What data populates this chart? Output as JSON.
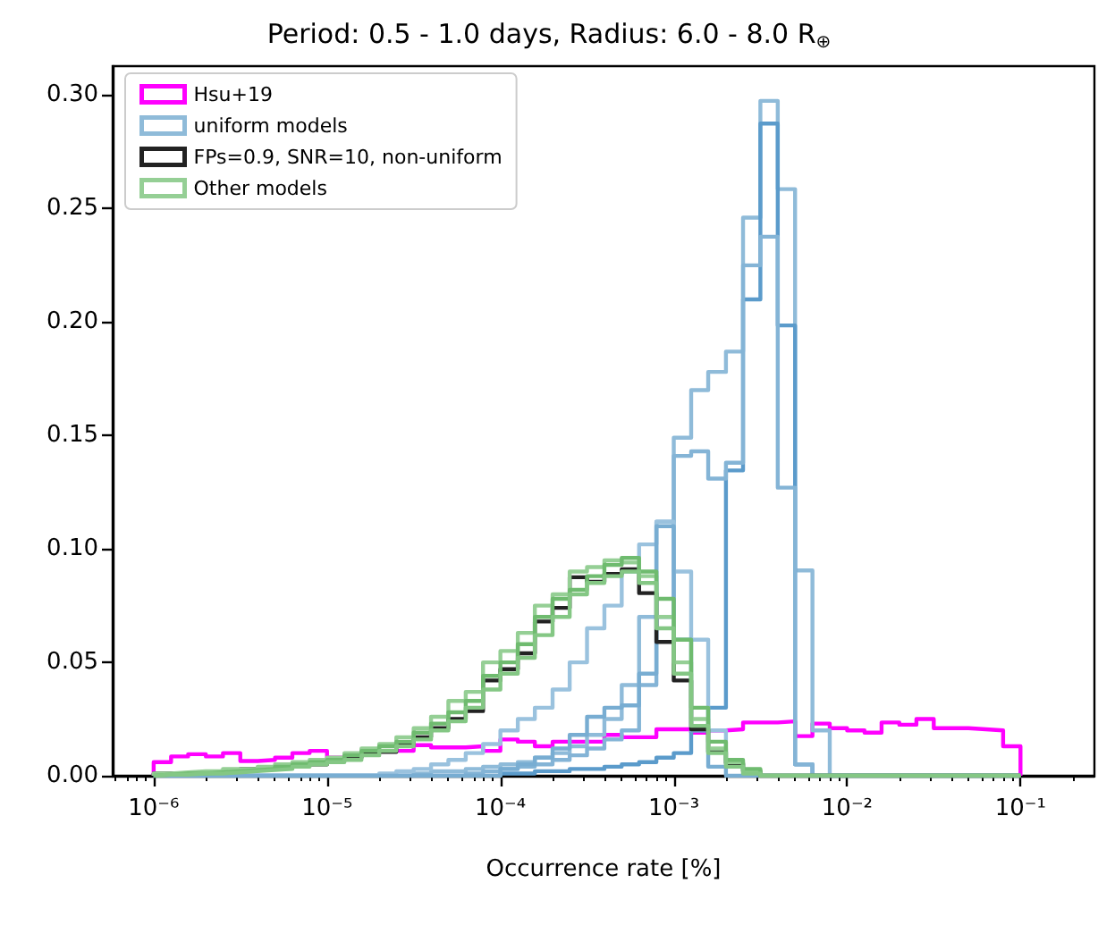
{
  "chart_data": {
    "type": "histogram",
    "title": "Period: 0.5 - 1.0 days, Radius: 6.0 - 8.0 R$_{⊕}$",
    "xlabel": "Occurrence rate [%]",
    "log": "x",
    "grid": false,
    "legend": "top left",
    "line_style": "solid",
    "xlim": [
      5.8e-07,
      0.267
    ],
    "ylim": [
      0,
      0.3128
    ],
    "xticks": [
      {
        "value": 1e-06,
        "label": "10⁻⁶"
      },
      {
        "value": 1e-05,
        "label": "10⁻⁵"
      },
      {
        "value": 0.0001,
        "label": "10⁻⁴"
      },
      {
        "value": 0.001,
        "label": "10⁻³"
      },
      {
        "value": 0.01,
        "label": "10⁻²"
      },
      {
        "value": 0.1,
        "label": "10⁻¹"
      }
    ],
    "yticks": [
      {
        "value": 0,
        "label": "0.00"
      },
      {
        "value": 0.05,
        "label": "0.05"
      },
      {
        "value": 0.1,
        "label": "0.10"
      },
      {
        "value": 0.15,
        "label": "0.15"
      },
      {
        "value": 0.2,
        "label": "0.20"
      },
      {
        "value": 0.25,
        "label": "0.25"
      },
      {
        "value": 0.3,
        "label": "0.30"
      }
    ],
    "bins": [
      1e-06,
      1.26e-06,
      1.58e-06,
      2e-06,
      2.51e-06,
      3.16e-06,
      3.98e-06,
      5.01e-06,
      6.31e-06,
      7.94e-06,
      1e-05,
      1.26e-05,
      1.58e-05,
      2e-05,
      2.51e-05,
      3.16e-05,
      3.98e-05,
      5.01e-05,
      6.31e-05,
      7.94e-05,
      0.0001,
      0.000126,
      0.000158,
      0.0002,
      0.000251,
      0.000316,
      0.000398,
      0.000501,
      0.000631,
      0.000794,
      0.001,
      0.00126,
      0.00158,
      0.002,
      0.00251,
      0.00316,
      0.00398,
      0.00501,
      0.00631,
      0.00794,
      0.01,
      0.0126,
      0.0158,
      0.02,
      0.0251,
      0.0316,
      0.0398,
      0.0501,
      0.0631,
      0.0794,
      0.1
    ],
    "series": [
      {
        "name": "Hsu+19",
        "color": "#ff00ff",
        "values": [
          0.006,
          0.0085,
          0.0095,
          0.0085,
          0.01,
          0.0065,
          0.007,
          0.008,
          0.01,
          0.011,
          0.008,
          0.009,
          0.011,
          0.011,
          0.011,
          0.0135,
          0.0125,
          0.0125,
          0.013,
          0.011,
          0.016,
          0.015,
          0.013,
          0.015,
          0.015,
          0.015,
          0.018,
          0.017,
          0.017,
          0.0205,
          0.0205,
          0.019,
          0.02,
          0.0205,
          0.0235,
          0.0235,
          0.024,
          0.0175,
          0.023,
          0.021,
          0.02,
          0.019,
          0.0235,
          0.0225,
          0.025,
          0.021,
          0.021,
          0.0205,
          0.02,
          0.013
        ]
      },
      {
        "name": "uniform models",
        "color": "#8fbbd9",
        "values": [
          0,
          0,
          0,
          0,
          0,
          0,
          0,
          0,
          0,
          0,
          0,
          0,
          0,
          0,
          0,
          0.001,
          0.002,
          0.002,
          0.003,
          0.004,
          0.005,
          0.006,
          0.008,
          0.01,
          0.013,
          0.018,
          0.025,
          0.04,
          0.07,
          0.112,
          0.149,
          0.17,
          0.178,
          0.187,
          0.246,
          0.2975,
          0.2586,
          0.0905,
          0.02,
          0,
          0,
          0,
          0,
          0,
          0,
          0,
          0,
          0,
          0,
          0
        ]
      },
      {
        "color": "#5b9bcb",
        "values": [
          0,
          0,
          0,
          0,
          0,
          0,
          0,
          0,
          0,
          0,
          0,
          0,
          0,
          0,
          0,
          0,
          0,
          0,
          0,
          0,
          0.001,
          0.001,
          0.002,
          0.002,
          0.003,
          0.003,
          0.004,
          0.005,
          0.006,
          0.008,
          0.01,
          0.02,
          0.03,
          0.1346,
          0.21,
          0.2875,
          0.1985,
          0.005,
          0,
          0,
          0,
          0,
          0,
          0,
          0,
          0,
          0,
          0,
          0,
          0
        ]
      },
      {
        "color": "#84b4d6",
        "values": [
          0,
          0,
          0,
          0,
          0,
          0,
          0,
          0,
          0,
          0,
          0,
          0,
          0,
          0,
          0,
          0,
          0,
          0,
          0.001,
          0.002,
          0.003,
          0.004,
          0.005,
          0.007,
          0.009,
          0.012,
          0.016,
          0.02,
          0.04,
          0.07,
          0.141,
          0.143,
          0.131,
          0.138,
          0.225,
          0.2376,
          0.127,
          0.005,
          0,
          0,
          0,
          0,
          0,
          0,
          0,
          0,
          0,
          0,
          0,
          0
        ]
      },
      {
        "color": "#9ac2de",
        "values": [
          0,
          0,
          0,
          0,
          0,
          0,
          0,
          0,
          0,
          0,
          0,
          0,
          0,
          0.001,
          0.002,
          0.003,
          0.005,
          0.007,
          0.01,
          0.014,
          0.02,
          0.025,
          0.03,
          0.038,
          0.05,
          0.065,
          0.075,
          0.09,
          0.102,
          0.112,
          0.09,
          0.06,
          0.02,
          0.005,
          0,
          0,
          0,
          0,
          0,
          0,
          0,
          0,
          0,
          0,
          0,
          0,
          0,
          0,
          0,
          0
        ]
      },
      {
        "color": "#78add2",
        "values": [
          0,
          0,
          0,
          0,
          0,
          0,
          0,
          0,
          0,
          0,
          0,
          0,
          0,
          0,
          0,
          0,
          0,
          0,
          0,
          0,
          0.003,
          0.005,
          0.008,
          0.012,
          0.018,
          0.026,
          0.03,
          0.031,
          0.045,
          0.11,
          0.06,
          0.02,
          0.004,
          0,
          0,
          0,
          0,
          0,
          0,
          0,
          0,
          0,
          0,
          0,
          0,
          0,
          0,
          0,
          0,
          0
        ]
      },
      {
        "name": "FPs=0.9, SNR=10, non-uniform",
        "color": "#222222",
        "values": [
          0.001,
          0.001,
          0.0015,
          0.002,
          0.002,
          0.003,
          0.003,
          0.004,
          0.005,
          0.005,
          0.007,
          0.008,
          0.0105,
          0.0105,
          0.0135,
          0.017,
          0.021,
          0.025,
          0.0285,
          0.042,
          0.047,
          0.054,
          0.068,
          0.074,
          0.0875,
          0.0855,
          0.089,
          0.091,
          0.0805,
          0.059,
          0.042,
          0.0205,
          0.0105,
          0.0055,
          0.002,
          0,
          0,
          0,
          0,
          0,
          0,
          0,
          0,
          0,
          0,
          0,
          0,
          0,
          0,
          0
        ]
      },
      {
        "name": "Other models",
        "color": "#95cf95",
        "values": [
          0.001,
          0.0015,
          0.002,
          0.002,
          0.003,
          0.003,
          0.004,
          0.005,
          0.006,
          0.007,
          0.008,
          0.01,
          0.012,
          0.014,
          0.017,
          0.021,
          0.026,
          0.033,
          0.037,
          0.05,
          0.055,
          0.063,
          0.075,
          0.08,
          0.09,
          0.092,
          0.095,
          0.094,
          0.088,
          0.07,
          0.05,
          0.025,
          0.012,
          0.006,
          0.002,
          0,
          0,
          0,
          0,
          0,
          0,
          0,
          0,
          0,
          0,
          0,
          0,
          0,
          0,
          0
        ]
      },
      {
        "color": "#6fbb6f",
        "values": [
          0.0005,
          0.001,
          0.001,
          0.0015,
          0.002,
          0.0025,
          0.003,
          0.004,
          0.005,
          0.006,
          0.007,
          0.009,
          0.011,
          0.013,
          0.015,
          0.019,
          0.023,
          0.028,
          0.033,
          0.044,
          0.05,
          0.058,
          0.07,
          0.078,
          0.082,
          0.088,
          0.093,
          0.096,
          0.09,
          0.078,
          0.06,
          0.03,
          0.015,
          0.007,
          0.003,
          0,
          0,
          0,
          0,
          0,
          0,
          0,
          0,
          0,
          0,
          0,
          0,
          0,
          0,
          0
        ]
      },
      {
        "color": "#84c784",
        "values": [
          0.0005,
          0.0005,
          0.001,
          0.001,
          0.0015,
          0.002,
          0.0025,
          0.003,
          0.004,
          0.005,
          0.006,
          0.007,
          0.009,
          0.011,
          0.013,
          0.016,
          0.02,
          0.024,
          0.03,
          0.038,
          0.045,
          0.052,
          0.062,
          0.07,
          0.08,
          0.085,
          0.088,
          0.09,
          0.085,
          0.065,
          0.045,
          0.022,
          0.01,
          0.004,
          0.001,
          0,
          0,
          0,
          0,
          0,
          0,
          0,
          0,
          0,
          0,
          0,
          0,
          0,
          0,
          0
        ]
      }
    ]
  }
}
